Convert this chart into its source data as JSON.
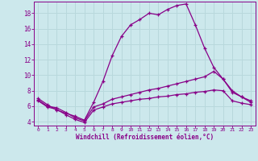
{
  "xlabel": "Windchill (Refroidissement éolien,°C)",
  "bg_color": "#cce8ec",
  "line_color": "#880088",
  "grid_color": "#b8d8dc",
  "line1_x": [
    0,
    1,
    2,
    3,
    4,
    5,
    6,
    7,
    8,
    9,
    10,
    11,
    12,
    13,
    14,
    15,
    16,
    17,
    18,
    19,
    20,
    21,
    22,
    23
  ],
  "line1_y": [
    7.0,
    6.2,
    5.5,
    5.1,
    4.7,
    4.2,
    6.5,
    9.2,
    12.5,
    15.0,
    16.5,
    17.2,
    18.0,
    17.8,
    18.5,
    19.0,
    19.2,
    16.5,
    13.5,
    11.0,
    9.5,
    8.0,
    7.2,
    6.7
  ],
  "line2_x": [
    0,
    1,
    2,
    3,
    4,
    5,
    6,
    7,
    8,
    9,
    10,
    11,
    12,
    13,
    14,
    15,
    16,
    17,
    18,
    19,
    20,
    21,
    22,
    23
  ],
  "line2_y": [
    6.8,
    6.0,
    5.8,
    5.2,
    4.5,
    4.1,
    5.9,
    6.3,
    6.9,
    7.2,
    7.5,
    7.8,
    8.1,
    8.3,
    8.6,
    8.9,
    9.2,
    9.5,
    9.8,
    10.5,
    9.5,
    7.8,
    7.2,
    6.5
  ],
  "line3_x": [
    0,
    1,
    2,
    3,
    4,
    5,
    6,
    7,
    8,
    9,
    10,
    11,
    12,
    13,
    14,
    15,
    16,
    17,
    18,
    19,
    20,
    21,
    22,
    23
  ],
  "line3_y": [
    6.7,
    5.9,
    5.6,
    4.9,
    4.3,
    3.9,
    5.5,
    5.9,
    6.3,
    6.5,
    6.7,
    6.9,
    7.0,
    7.2,
    7.3,
    7.5,
    7.6,
    7.8,
    7.9,
    8.1,
    8.0,
    6.7,
    6.4,
    6.2
  ],
  "xlim_min": -0.5,
  "xlim_max": 23.5,
  "ylim_min": 3.5,
  "ylim_max": 19.5,
  "yticks": [
    4,
    6,
    8,
    10,
    12,
    14,
    16,
    18
  ],
  "xticks": [
    0,
    1,
    2,
    3,
    4,
    5,
    6,
    7,
    8,
    9,
    10,
    11,
    12,
    13,
    14,
    15,
    16,
    17,
    18,
    19,
    20,
    21,
    22,
    23
  ]
}
